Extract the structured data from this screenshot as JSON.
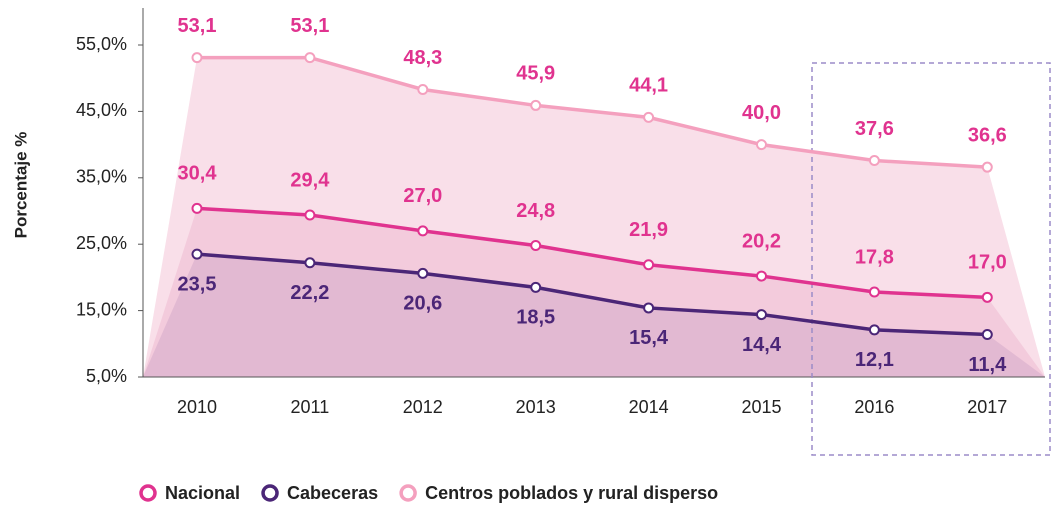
{
  "chart_data": {
    "type": "line",
    "y_label": "Porcentaje %",
    "categories": [
      "2010",
      "2011",
      "2012",
      "2013",
      "2014",
      "2015",
      "2016",
      "2017"
    ],
    "series": [
      {
        "name": "Nacional",
        "color": "#e0338f",
        "values": [
          30.4,
          29.4,
          27.0,
          24.8,
          21.9,
          20.2,
          17.8,
          17.0
        ],
        "value_labels": [
          "30,4",
          "29,4",
          "27,0",
          "24,8",
          "21,9",
          "20,2",
          "17,8",
          "17,0"
        ]
      },
      {
        "name": "Cabeceras",
        "color": "#4b2677",
        "values": [
          23.5,
          22.2,
          20.6,
          18.5,
          15.4,
          14.4,
          12.1,
          11.4
        ],
        "value_labels": [
          "23,5",
          "22,2",
          "20,6",
          "18,5",
          "15,4",
          "14,4",
          "12,1",
          "11,4"
        ]
      },
      {
        "name": "Centros poblados y rural disperso",
        "color": "#f4a0be",
        "values": [
          53.1,
          53.1,
          48.3,
          45.9,
          44.1,
          40.0,
          37.6,
          36.6
        ],
        "value_labels": [
          "53,1",
          "53,1",
          "48,3",
          "45,9",
          "44,1",
          "40,0",
          "37,6",
          "36,6"
        ]
      }
    ],
    "ylim": [
      5,
      55
    ],
    "yticks": [
      {
        "value": 5,
        "label": "5,0%"
      },
      {
        "value": 15,
        "label": "15,0%"
      },
      {
        "value": 25,
        "label": "25,0%"
      },
      {
        "value": 35,
        "label": "35,0%"
      },
      {
        "value": 45,
        "label": "45,0%"
      },
      {
        "value": 55,
        "label": "55,0%"
      }
    ]
  }
}
